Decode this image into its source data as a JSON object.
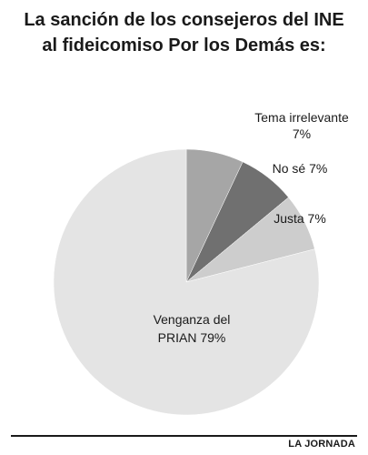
{
  "title_line1": "La sanción de los consejeros del INE",
  "title_line2": "al fideicomiso Por los Demás es:",
  "source": "LA JORNADA",
  "chart_data": {
    "type": "pie",
    "title": "La sanción de los consejeros del INE al fideicomiso Por los Demás es:",
    "slices": [
      {
        "label_lines": [
          "Tema irrelevante",
          "7%"
        ],
        "value": 7,
        "color": "#a6a6a6"
      },
      {
        "label_lines": [
          "No sé 7%"
        ],
        "value": 7,
        "color": "#707070"
      },
      {
        "label_lines": [
          "Justa 7%"
        ],
        "value": 7,
        "color": "#cdcdcd"
      },
      {
        "label_lines": [
          "Venganza del",
          "PRIAN 79%"
        ],
        "value": 79,
        "color": "#e4e4e4"
      }
    ]
  }
}
